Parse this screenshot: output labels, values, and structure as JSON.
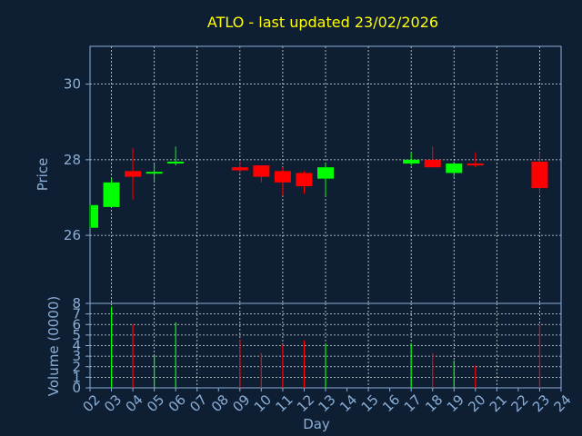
{
  "chart_data": {
    "type": "candlestick",
    "title": "ATLO - last updated 23/02/2026",
    "xlabel": "Day",
    "x_tick_labels": [
      "02",
      "03",
      "04",
      "05",
      "06",
      "07",
      "08",
      "09",
      "10",
      "11",
      "12",
      "13",
      "14",
      "15",
      "16",
      "17",
      "18",
      "19",
      "20",
      "21",
      "22",
      "23",
      "24"
    ],
    "price_panel": {
      "ylabel": "Price",
      "ylim": [
        24.2,
        31.0
      ],
      "y_ticks": [
        26,
        28,
        30
      ],
      "y_tick_labels": [
        "26",
        "28",
        "30"
      ],
      "grid": true
    },
    "volume_panel": {
      "ylabel": "Volume (0000)",
      "ylim": [
        0,
        8
      ],
      "y_ticks": [
        0,
        1,
        2,
        3,
        4,
        5,
        6,
        7,
        8
      ],
      "y_tick_labels": [
        "0",
        "1",
        "2",
        "3",
        "4",
        "5",
        "6",
        "7",
        "8"
      ],
      "grid": true
    },
    "candles": [
      {
        "day": 2,
        "open": 26.2,
        "high": 26.8,
        "low": 26.2,
        "close": 26.8
      },
      {
        "day": 3,
        "open": 26.75,
        "high": 27.5,
        "low": 26.75,
        "close": 27.4
      },
      {
        "day": 4,
        "open": 27.7,
        "high": 28.3,
        "low": 26.95,
        "close": 27.55
      },
      {
        "day": 5,
        "open": 27.65,
        "high": 27.9,
        "low": 27.45,
        "close": 27.68
      },
      {
        "day": 6,
        "open": 27.9,
        "high": 28.35,
        "low": 27.85,
        "close": 27.95
      },
      {
        "day": 9,
        "open": 27.8,
        "high": 27.95,
        "low": 27.65,
        "close": 27.72
      },
      {
        "day": 10,
        "open": 27.85,
        "high": 27.85,
        "low": 27.4,
        "close": 27.55
      },
      {
        "day": 11,
        "open": 27.7,
        "high": 27.8,
        "low": 27.05,
        "close": 27.4
      },
      {
        "day": 12,
        "open": 27.65,
        "high": 27.7,
        "low": 27.1,
        "close": 27.3
      },
      {
        "day": 13,
        "open": 27.5,
        "high": 27.9,
        "low": 27.05,
        "close": 27.8
      },
      {
        "day": 17,
        "open": 27.9,
        "high": 28.2,
        "low": 27.85,
        "close": 28.0
      },
      {
        "day": 18,
        "open": 28.0,
        "high": 28.35,
        "low": 27.8,
        "close": 27.8
      },
      {
        "day": 19,
        "open": 27.65,
        "high": 27.95,
        "low": 27.55,
        "close": 27.9
      },
      {
        "day": 20,
        "open": 27.9,
        "high": 28.2,
        "low": 27.8,
        "close": 27.85
      },
      {
        "day": 23,
        "open": 27.95,
        "high": 28.2,
        "low": 27.1,
        "close": 27.25
      }
    ],
    "volume": [
      {
        "day": 3,
        "value": 7.7,
        "direction": "up"
      },
      {
        "day": 4,
        "value": 6.0,
        "direction": "down"
      },
      {
        "day": 5,
        "value": 3.1,
        "direction": "up"
      },
      {
        "day": 6,
        "value": 6.2,
        "direction": "up"
      },
      {
        "day": 9,
        "value": 4.6,
        "direction": "down"
      },
      {
        "day": 10,
        "value": 3.3,
        "direction": "down"
      },
      {
        "day": 11,
        "value": 4.1,
        "direction": "down"
      },
      {
        "day": 12,
        "value": 4.5,
        "direction": "down"
      },
      {
        "day": 13,
        "value": 4.2,
        "direction": "up"
      },
      {
        "day": 17,
        "value": 4.2,
        "direction": "up"
      },
      {
        "day": 18,
        "value": 3.3,
        "direction": "down"
      },
      {
        "day": 19,
        "value": 2.6,
        "direction": "up"
      },
      {
        "day": 20,
        "value": 2.1,
        "direction": "down"
      },
      {
        "day": 23,
        "value": 5.9,
        "direction": "down"
      }
    ],
    "colors": {
      "background": "#0f1f33",
      "up": "#00ff00",
      "down": "#ff0000",
      "axis": "#8aaed6",
      "title": "#ffff00",
      "grid": "#ffffff"
    }
  }
}
